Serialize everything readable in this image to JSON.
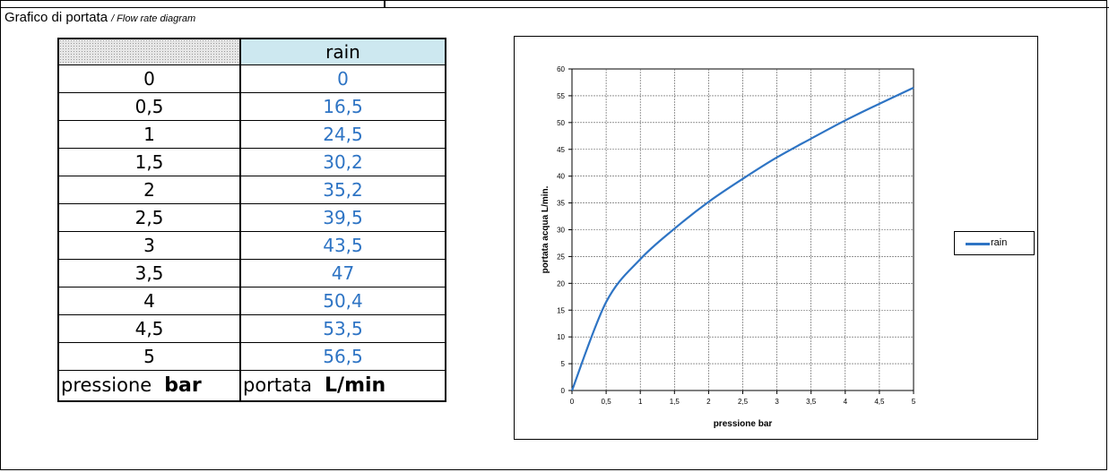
{
  "title": "Grafico di portata",
  "subtitle": "/ Flow rate diagram",
  "table": {
    "header_flow": "rain",
    "rows": [
      {
        "pressure": "0",
        "flow": "0"
      },
      {
        "pressure": "0,5",
        "flow": "16,5"
      },
      {
        "pressure": "1",
        "flow": "24,5"
      },
      {
        "pressure": "1,5",
        "flow": "30,2"
      },
      {
        "pressure": "2",
        "flow": "35,2"
      },
      {
        "pressure": "2,5",
        "flow": "39,5"
      },
      {
        "pressure": "3",
        "flow": "43,5"
      },
      {
        "pressure": "3,5",
        "flow": "47"
      },
      {
        "pressure": "4",
        "flow": "50,4"
      },
      {
        "pressure": "4,5",
        "flow": "53,5"
      },
      {
        "pressure": "5",
        "flow": "56,5"
      }
    ],
    "footer_pressure_label": "pressione",
    "footer_pressure_unit": "bar",
    "footer_flow_label": "portata",
    "footer_flow_unit": "L/min"
  },
  "chart_data": {
    "type": "line",
    "xlabel": "pressione  bar",
    "ylabel": "portata acqua  L/min.",
    "x_ticks": [
      "0",
      "0,5",
      "1",
      "1,5",
      "2",
      "2,5",
      "3",
      "3,5",
      "4",
      "4,5",
      "5"
    ],
    "y_ticks": [
      "0",
      "5",
      "10",
      "15",
      "20",
      "25",
      "30",
      "35",
      "40",
      "45",
      "50",
      "55",
      "60"
    ],
    "xlim": [
      0,
      5
    ],
    "ylim": [
      0,
      60
    ],
    "grid": true,
    "legend_position": "right",
    "series": [
      {
        "name": "rain",
        "color": "#2e74c4",
        "x": [
          0,
          0.5,
          1,
          1.5,
          2,
          2.5,
          3,
          3.5,
          4,
          4.5,
          5
        ],
        "values": [
          0,
          16.5,
          24.5,
          30.2,
          35.2,
          39.5,
          43.5,
          47,
          50.4,
          53.5,
          56.5
        ]
      }
    ]
  }
}
